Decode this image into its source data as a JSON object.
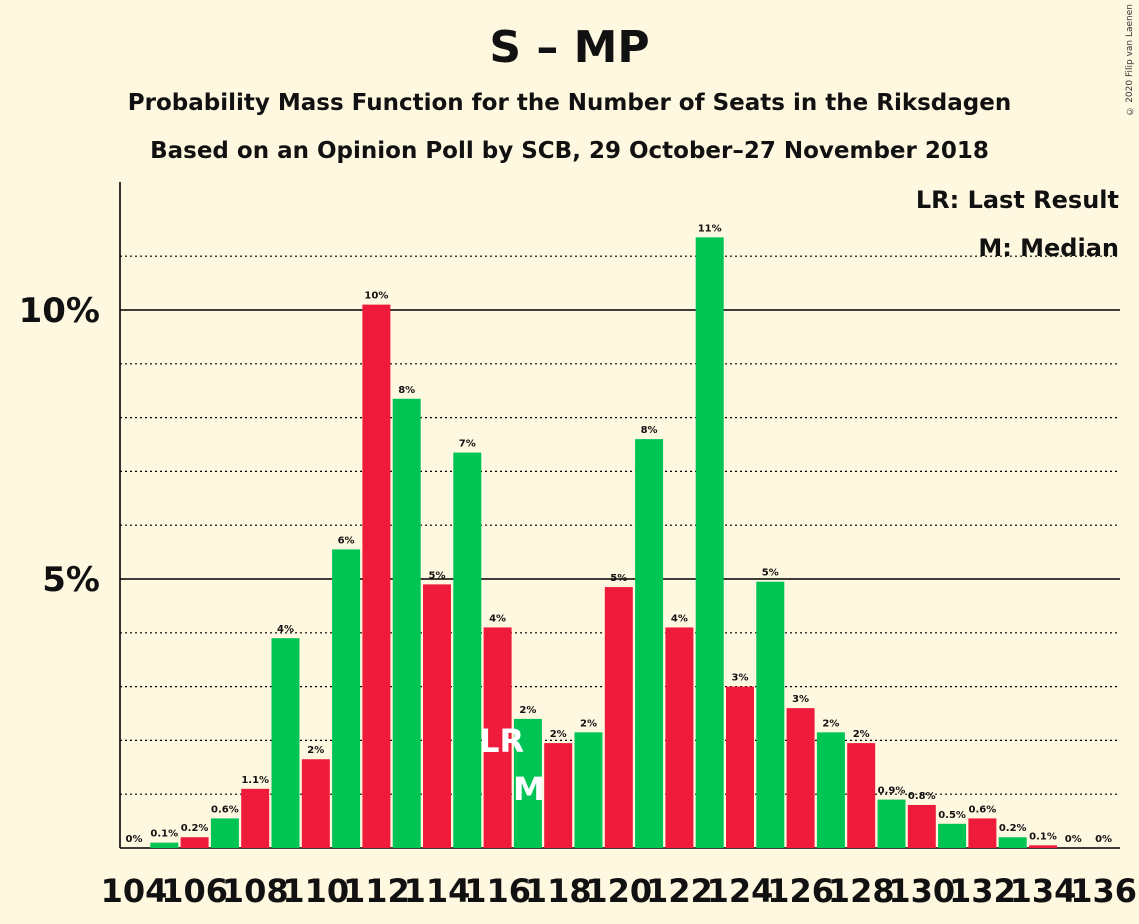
{
  "title": "S – MP",
  "subtitle_1": "Probability Mass Function for the Number of Seats in the Riksdagen",
  "subtitle_2": "Based on an Opinion Poll by SCB, 29 October–27 November 2018",
  "copyright": "© 2020 Filip van Laenen",
  "legend": {
    "last_result": "LR: Last Result",
    "median": "M: Median"
  },
  "colors": {
    "background": "#FFF8E1",
    "green": "#00C454",
    "red": "#EE1C3A"
  },
  "chart_data": {
    "type": "bar",
    "title": "S – MP",
    "xlabel": "",
    "ylabel": "",
    "ylim": [
      0,
      12.3
    ],
    "y_ticks": [
      {
        "value": 5,
        "label": "5%"
      },
      {
        "value": 10,
        "label": "10%"
      }
    ],
    "gridlines": "dotted every 1%, solid at 5% and 10%",
    "x_tick_labels": [
      "104",
      "106",
      "108",
      "110",
      "112",
      "114",
      "116",
      "118",
      "120",
      "122",
      "124",
      "126",
      "128",
      "130",
      "132",
      "134",
      "136"
    ],
    "categories": [
      104,
      105,
      106,
      107,
      108,
      109,
      110,
      111,
      112,
      113,
      114,
      115,
      116,
      117,
      118,
      119,
      120,
      121,
      122,
      123,
      124,
      125,
      126,
      127,
      128,
      129,
      130,
      131,
      132,
      133,
      134,
      135,
      136
    ],
    "values": [
      0,
      0.1,
      0.2,
      0.55,
      1.1,
      3.9,
      1.65,
      5.55,
      10.1,
      8.35,
      4.9,
      7.35,
      4.1,
      2.4,
      1.95,
      2.15,
      4.85,
      7.6,
      4.1,
      11.35,
      3.0,
      4.95,
      2.6,
      2.15,
      1.95,
      0.9,
      0.8,
      0.45,
      0.55,
      0.2,
      0.05,
      0,
      0
    ],
    "labels": [
      "0%",
      "0.1%",
      "0.2%",
      "0.6%",
      "1.1%",
      "4%",
      "2%",
      "6%",
      "10%",
      "8%",
      "5%",
      "7%",
      "4%",
      "2%",
      "2%",
      "2%",
      "5%",
      "8%",
      "4%",
      "11%",
      "3%",
      "5%",
      "3%",
      "2%",
      "2%",
      "0.9%",
      "0.8%",
      "0.5%",
      "0.6%",
      "0.2%",
      "0.1%",
      "0%",
      "0%"
    ],
    "colors": [
      "g",
      "g",
      "r",
      "g",
      "r",
      "g",
      "r",
      "g",
      "r",
      "g",
      "r",
      "g",
      "r",
      "g",
      "r",
      "g",
      "r",
      "g",
      "r",
      "g",
      "r",
      "g",
      "r",
      "g",
      "r",
      "g",
      "r",
      "g",
      "r",
      "g",
      "r",
      "g",
      "r"
    ],
    "last_result": {
      "seat": 116,
      "label": "LR"
    },
    "median": {
      "seat": 117,
      "label": "M"
    }
  }
}
